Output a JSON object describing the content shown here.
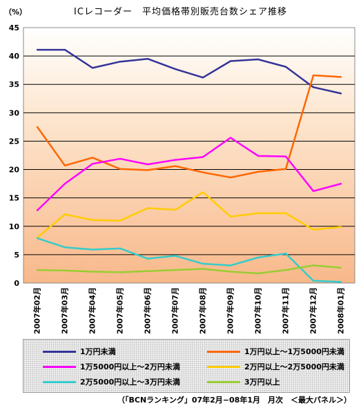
{
  "chart_data": {
    "type": "line",
    "title": "ICレコーダー　平均価格帯別販売台数シェア推移",
    "y_unit": "（%）",
    "categories": [
      "2007年02月",
      "2007年03月",
      "2007年04月",
      "2007年05月",
      "2007年06月",
      "2007年07月",
      "2007年08月",
      "2007年09月",
      "2007年10月",
      "2007年11月",
      "2007年12月",
      "2008年01月"
    ],
    "ylim": [
      0,
      45
    ],
    "yticks": [
      0,
      5,
      10,
      15,
      20,
      25,
      30,
      35,
      40,
      45
    ],
    "grid": true,
    "legend_position": "bottom",
    "series": [
      {
        "name": "1万円未満",
        "color": "#333399",
        "values": [
          41.1,
          41.1,
          37.9,
          39.0,
          39.5,
          37.7,
          36.2,
          39.1,
          39.4,
          38.1,
          34.5,
          33.4
        ]
      },
      {
        "name": "1万円以上～1万5000円未満",
        "color": "#ff6600",
        "values": [
          27.5,
          20.7,
          22.1,
          20.1,
          19.9,
          20.6,
          19.5,
          18.6,
          19.6,
          20.1,
          36.6,
          36.3
        ]
      },
      {
        "name": "1万5000円以上～2万円未満",
        "color": "#ff00ff",
        "values": [
          12.8,
          17.5,
          21.0,
          21.9,
          20.9,
          21.7,
          22.2,
          25.6,
          22.4,
          22.3,
          16.2,
          17.5
        ]
      },
      {
        "name": "2万円以上～2万5000円未満",
        "color": "#ffcc00",
        "values": [
          8.0,
          12.1,
          11.1,
          11.0,
          13.2,
          12.9,
          16.0,
          11.7,
          12.3,
          12.3,
          9.4,
          9.9
        ]
      },
      {
        "name": "2万5000円以上～3万円未満",
        "color": "#33cccc",
        "values": [
          7.9,
          6.3,
          5.9,
          6.1,
          4.3,
          4.8,
          3.4,
          3.1,
          4.5,
          5.2,
          0.4,
          0.2
        ]
      },
      {
        "name": "3万円以上",
        "color": "#99cc33",
        "values": [
          2.3,
          2.2,
          2.0,
          1.9,
          2.1,
          2.3,
          2.5,
          2.0,
          1.7,
          2.3,
          3.1,
          2.7
        ]
      }
    ]
  },
  "source_note": "（「BCNランキング」07年2月−08年1月　月次　＜最大パネル＞）"
}
